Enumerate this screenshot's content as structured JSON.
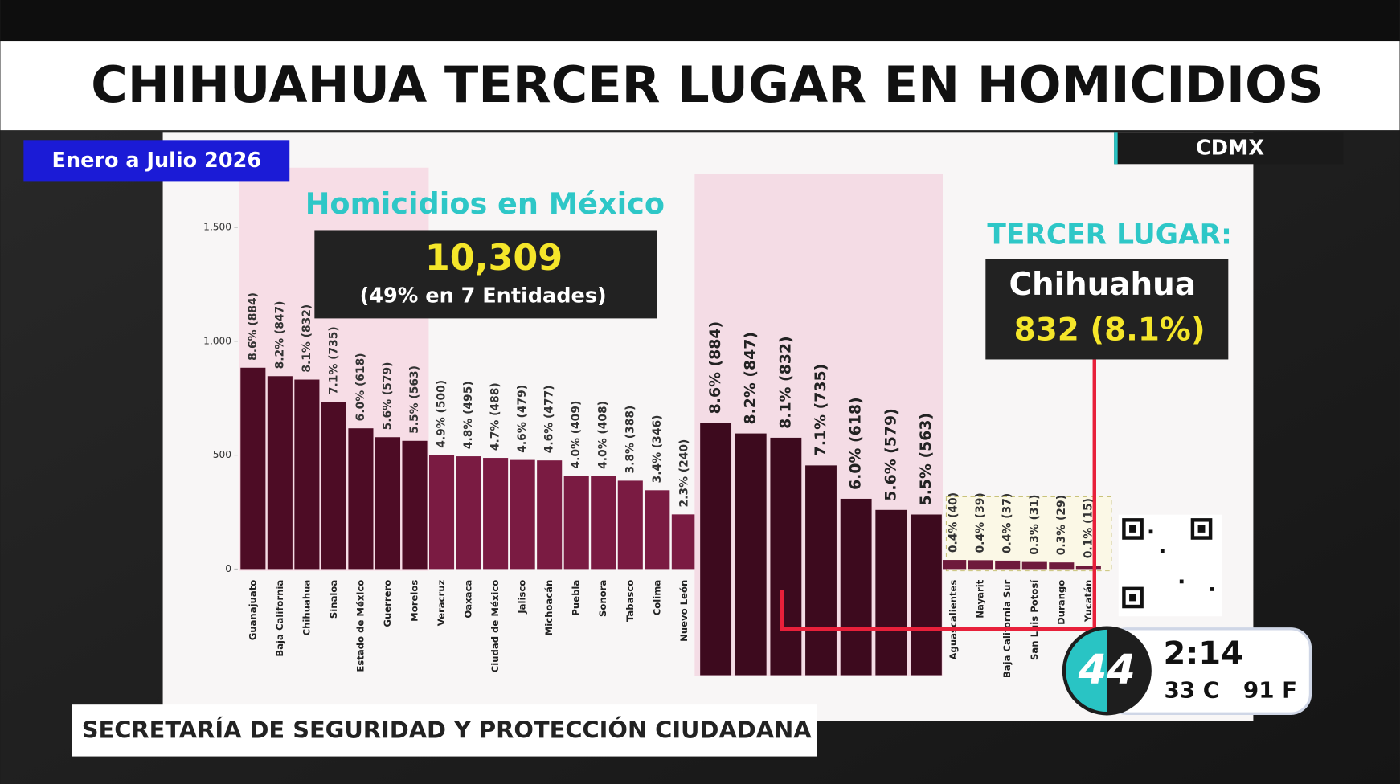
{
  "header": {
    "title": "CHIHUAHUA TERCER LUGAR EN HOMICIDIOS",
    "period": "Enero a Julio 2026",
    "location": "CDMX"
  },
  "chart_data": [
    {
      "type": "bar",
      "title": "Homicidios en México",
      "total": "10,309",
      "note": "(49% en 7 Entidades)",
      "categories": [
        "Guanajuato",
        "Baja California",
        "Chihuahua",
        "Sinaloa",
        "Estado de México",
        "Guerrero",
        "Morelos",
        "Veracruz",
        "Oaxaca",
        "Ciudad de México",
        "Jalisco",
        "Michoacán",
        "Puebla",
        "Sonora",
        "Tabasco",
        "Colima",
        "Nuevo León",
        "Aguascalientes",
        "Nayarit",
        "Baja California Sur",
        "San Luis Potosí",
        "Durango",
        "Yucatán"
      ],
      "values": [
        884,
        847,
        832,
        735,
        618,
        579,
        563,
        500,
        495,
        488,
        479,
        477,
        409,
        408,
        388,
        346,
        240,
        40,
        39,
        37,
        31,
        29,
        15
      ],
      "value_labels": [
        "8.6% (884)",
        "8.2% (847)",
        "8.1% (832)",
        "7.1% (735)",
        "6.0% (618)",
        "5.6% (579)",
        "5.5% (563)",
        "4.9% (500)",
        "4.8% (495)",
        "4.7% (488)",
        "4.6% (479)",
        "4.6% (477)",
        "4.0% (409)",
        "4.0% (408)",
        "3.8% (388)",
        "3.4% (346)",
        "2.3% (240)",
        "0.4% (40)",
        "0.4% (39)",
        "0.4% (37)",
        "0.3% (31)",
        "0.3% (29)",
        "0.1% (15)"
      ],
      "colors": [
        "#4d0c25",
        "#4d0c25",
        "#4d0c25",
        "#4d0c25",
        "#4d0c25",
        "#4d0c25",
        "#4d0c25",
        "#7a1b42",
        "#7a1b42",
        "#7a1b42",
        "#7a1b42",
        "#7a1b42",
        "#7a1b42",
        "#7a1b42",
        "#7a1b42",
        "#7a1b42",
        "#7a1b42",
        "#6e1a3c",
        "#6e1a3c",
        "#6e1a3c",
        "#6e1a3c",
        "#6e1a3c",
        "#6e1a3c"
      ],
      "ylim": [
        0,
        1500
      ],
      "yticks": [
        0,
        500,
        {
          "value": 1000,
          "label": "1,000"
        },
        {
          "value": 1500,
          "label": "1,500"
        }
      ]
    },
    {
      "type": "bar",
      "values": [
        884,
        847,
        832,
        735,
        618,
        579,
        563
      ],
      "value_labels": [
        "8.6% (884)",
        "8.2% (847)",
        "8.1% (832)",
        "7.1% (735)",
        "6.0% (618)",
        "5.6% (579)",
        "5.5% (563)"
      ],
      "color": "#3d0a1e"
    }
  ],
  "callout": {
    "heading": "TERCER LUGAR:",
    "state": "Chihuahua",
    "figure": "832 (8.1%)"
  },
  "source": "SECRETARÍA DE SEGURIDAD Y PROTECCIÓN CIUDADANA",
  "clock": {
    "channel": "44",
    "time": "2:14",
    "temp_c": "33 C",
    "temp_f": "91 F"
  }
}
